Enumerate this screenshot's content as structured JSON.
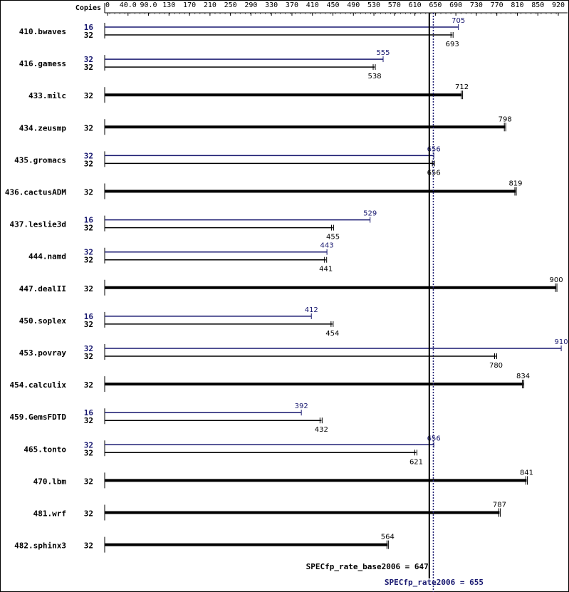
{
  "colors": {
    "base": "#000000",
    "peak": "#191970",
    "border": "#000000",
    "background": "#ffffff"
  },
  "chart_data": {
    "type": "bar",
    "orientation": "horizontal",
    "copies_header": "Copies",
    "axis_ticks": [
      "0",
      "40.0",
      "90.0",
      "130",
      "170",
      "210",
      "250",
      "290",
      "330",
      "370",
      "410",
      "450",
      "490",
      "530",
      "570",
      "610",
      "650",
      "690",
      "730",
      "770",
      "810",
      "850",
      "920"
    ],
    "xlim": [
      0,
      920
    ],
    "series": [
      {
        "name": "base"
      },
      {
        "name": "peak"
      }
    ],
    "benchmarks": [
      {
        "name": "410.bwaves",
        "peak_copies": "16",
        "peak": 705,
        "peak_label": "705",
        "base_copies": "32",
        "base": 693,
        "base_label": "693"
      },
      {
        "name": "416.gamess",
        "peak_copies": "32",
        "peak": 555,
        "peak_label": "555",
        "base_copies": "32",
        "base": 538,
        "base_label": "538"
      },
      {
        "name": "433.milc",
        "base_copies": "32",
        "base": 712,
        "base_label": "712"
      },
      {
        "name": "434.zeusmp",
        "base_copies": "32",
        "base": 798,
        "base_label": "798"
      },
      {
        "name": "435.gromacs",
        "peak_copies": "32",
        "peak": 656,
        "peak_label": "656",
        "base_copies": "32",
        "base": 656,
        "base_label": "656"
      },
      {
        "name": "436.cactusADM",
        "base_copies": "32",
        "base": 819,
        "base_label": "819"
      },
      {
        "name": "437.leslie3d",
        "peak_copies": "16",
        "peak": 529,
        "peak_label": "529",
        "base_copies": "32",
        "base": 455,
        "base_label": "455"
      },
      {
        "name": "444.namd",
        "peak_copies": "32",
        "peak": 443,
        "peak_label": "443",
        "base_copies": "32",
        "base": 441,
        "base_label": "441"
      },
      {
        "name": "447.dealII",
        "base_copies": "32",
        "base": 900,
        "base_label": "900"
      },
      {
        "name": "450.soplex",
        "peak_copies": "16",
        "peak": 412,
        "peak_label": "412",
        "base_copies": "32",
        "base": 454,
        "base_label": "454"
      },
      {
        "name": "453.povray",
        "peak_copies": "32",
        "peak": 910,
        "peak_label": "910",
        "base_copies": "32",
        "base": 780,
        "base_label": "780"
      },
      {
        "name": "454.calculix",
        "base_copies": "32",
        "base": 834,
        "base_label": "834"
      },
      {
        "name": "459.GemsFDTD",
        "peak_copies": "16",
        "peak": 392,
        "peak_label": "392",
        "base_copies": "32",
        "base": 432,
        "base_label": "432"
      },
      {
        "name": "465.tonto",
        "peak_copies": "32",
        "peak": 656,
        "peak_label": "656",
        "base_copies": "32",
        "base": 621,
        "base_label": "621"
      },
      {
        "name": "470.lbm",
        "base_copies": "32",
        "base": 841,
        "base_label": "841"
      },
      {
        "name": "481.wrf",
        "base_copies": "32",
        "base": 787,
        "base_label": "787"
      },
      {
        "name": "482.sphinx3",
        "base_copies": "32",
        "base": 564,
        "base_label": "564"
      }
    ],
    "reference_lines": {
      "base": {
        "value": 647,
        "label": "SPECfp_rate_base2006 = 647"
      },
      "peak": {
        "value": 655,
        "label": "SPECfp_rate2006 = 655"
      }
    }
  }
}
